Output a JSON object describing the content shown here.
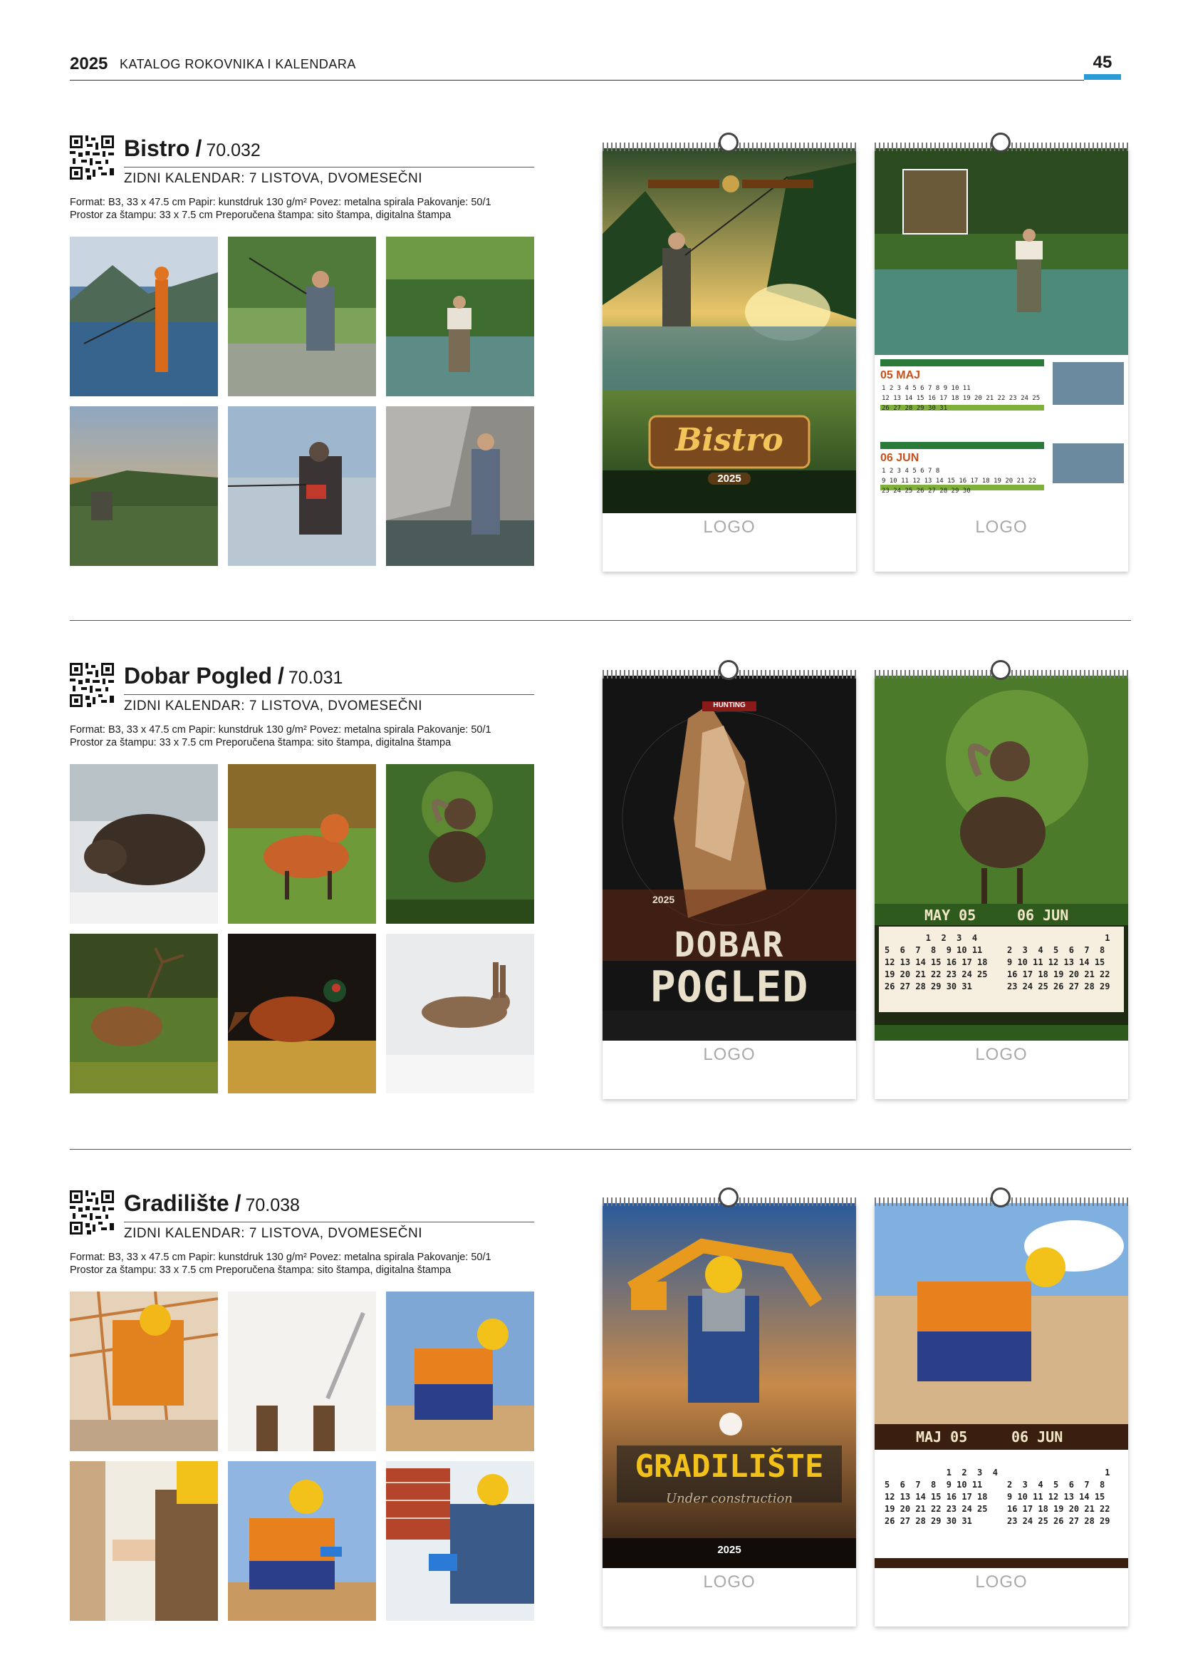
{
  "header": {
    "year": "2025",
    "title": "KATALOG ROKOVNIKA I KALENDARA",
    "page_number": "45",
    "accent_color": "#2a9bd7"
  },
  "products": [
    {
      "name": "Bistro",
      "code": "70.032",
      "type": "ZIDNI KALENDAR: 7 LISTOVA, DVOMESEČNI",
      "spec_line1": "Format: B3, 33 x 47.5 cm Papir: kunstdruk 130 g/m² Povez: metalna spirala Pakovanje: 50/1",
      "spec_line2": "Prostor za štampu: 33 x 7.5 cm Preporučena štampa: sito štampa, digitalna štampa",
      "calendar_logo": "LOGO",
      "cover_title": "Bistro",
      "cover_year": "2025",
      "month1": "05 MAJ",
      "month2": "06 JUN"
    },
    {
      "name": "Dobar Pogled",
      "code": "70.031",
      "type": "ZIDNI KALENDAR: 7 LISTOVA, DVOMESEČNI",
      "spec_line1": "Format: B3, 33 x 47.5 cm Papir: kunstdruk 130 g/m² Povez: metalna spirala Pakovanje: 50/1",
      "spec_line2": "Prostor za štampu: 33 x 7.5 cm Preporučena štampa: sito štampa, digitalna štampa",
      "calendar_logo": "LOGO",
      "cover_title_1": "DOBAR",
      "cover_title_2": "POGLED",
      "cover_year": "2025",
      "cover_top": "HUNTING",
      "month1": "MAY 05",
      "month2": "06 JUN"
    },
    {
      "name": "Gradilište",
      "code": "70.038",
      "type": "ZIDNI KALENDAR: 7 LISTOVA, DVOMESEČNI",
      "spec_line1": "Format: B3, 33 x 47.5 cm Papir: kunstdruk 130 g/m² Povez: metalna spirala Pakovanje: 50/1",
      "spec_line2": "Prostor za štampu: 33 x 7.5 cm Preporučena štampa: sito štampa, digitalna štampa",
      "calendar_logo": "LOGO",
      "cover_title": "GRADILIŠTE",
      "cover_sub": "Under construction",
      "cover_year": "2025",
      "month1": "MAJ 05",
      "month2": "06 JUN"
    }
  ]
}
